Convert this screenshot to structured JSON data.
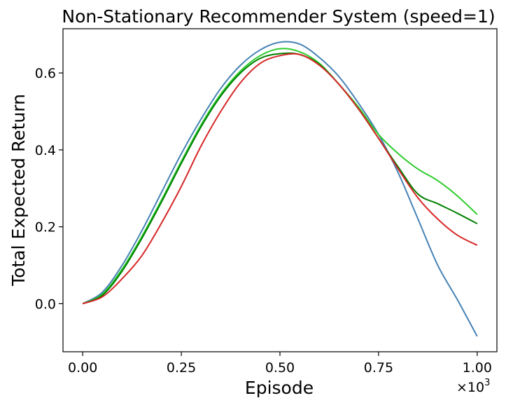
{
  "chart_data": {
    "type": "line",
    "title": "Non-Stationary Recommender System (speed=1)",
    "xlabel": "Episode",
    "ylabel": "Total Expected Return",
    "x_multiplier_label": "×10",
    "x_multiplier_exponent": "3",
    "xlim": [
      -0.05,
      1.05
    ],
    "ylim": [
      -0.125,
      0.715
    ],
    "xticks": [
      0.0,
      0.25,
      0.5,
      0.75,
      1.0
    ],
    "xtick_labels": [
      "0.00",
      "0.25",
      "0.50",
      "0.75",
      "1.00"
    ],
    "yticks": [
      0.0,
      0.2,
      0.4,
      0.6
    ],
    "ytick_labels": [
      "0.0",
      "0.2",
      "0.4",
      "0.6"
    ],
    "grid": false,
    "legend": false,
    "x": [
      0.0,
      0.05,
      0.1,
      0.15,
      0.2,
      0.25,
      0.3,
      0.35,
      0.4,
      0.45,
      0.5,
      0.55,
      0.6,
      0.65,
      0.7,
      0.75,
      0.8,
      0.85,
      0.9,
      0.95,
      1.0
    ],
    "series": [
      {
        "color": "#4682b4",
        "values": [
          0.0,
          0.03,
          0.1,
          0.19,
          0.29,
          0.39,
          0.48,
          0.56,
          0.62,
          0.66,
          0.68,
          0.675,
          0.64,
          0.59,
          0.52,
          0.44,
          0.34,
          0.22,
          0.1,
          0.01,
          -0.085
        ]
      },
      {
        "color": "#2ecc2e",
        "values": [
          0.0,
          0.025,
          0.09,
          0.175,
          0.27,
          0.37,
          0.465,
          0.545,
          0.605,
          0.645,
          0.663,
          0.655,
          0.625,
          0.57,
          0.51,
          0.44,
          0.39,
          0.35,
          0.32,
          0.28,
          0.232
        ]
      },
      {
        "color": "#008000",
        "values": [
          0.0,
          0.022,
          0.085,
          0.17,
          0.265,
          0.365,
          0.46,
          0.54,
          0.6,
          0.638,
          0.65,
          0.648,
          0.622,
          0.57,
          0.505,
          0.43,
          0.355,
          0.285,
          0.26,
          0.235,
          0.208
        ]
      },
      {
        "color": "#d62728",
        "values": [
          0.0,
          0.018,
          0.065,
          0.125,
          0.21,
          0.305,
          0.41,
          0.5,
          0.575,
          0.625,
          0.645,
          0.648,
          0.62,
          0.57,
          0.505,
          0.43,
          0.35,
          0.275,
          0.22,
          0.178,
          0.152
        ]
      }
    ]
  }
}
